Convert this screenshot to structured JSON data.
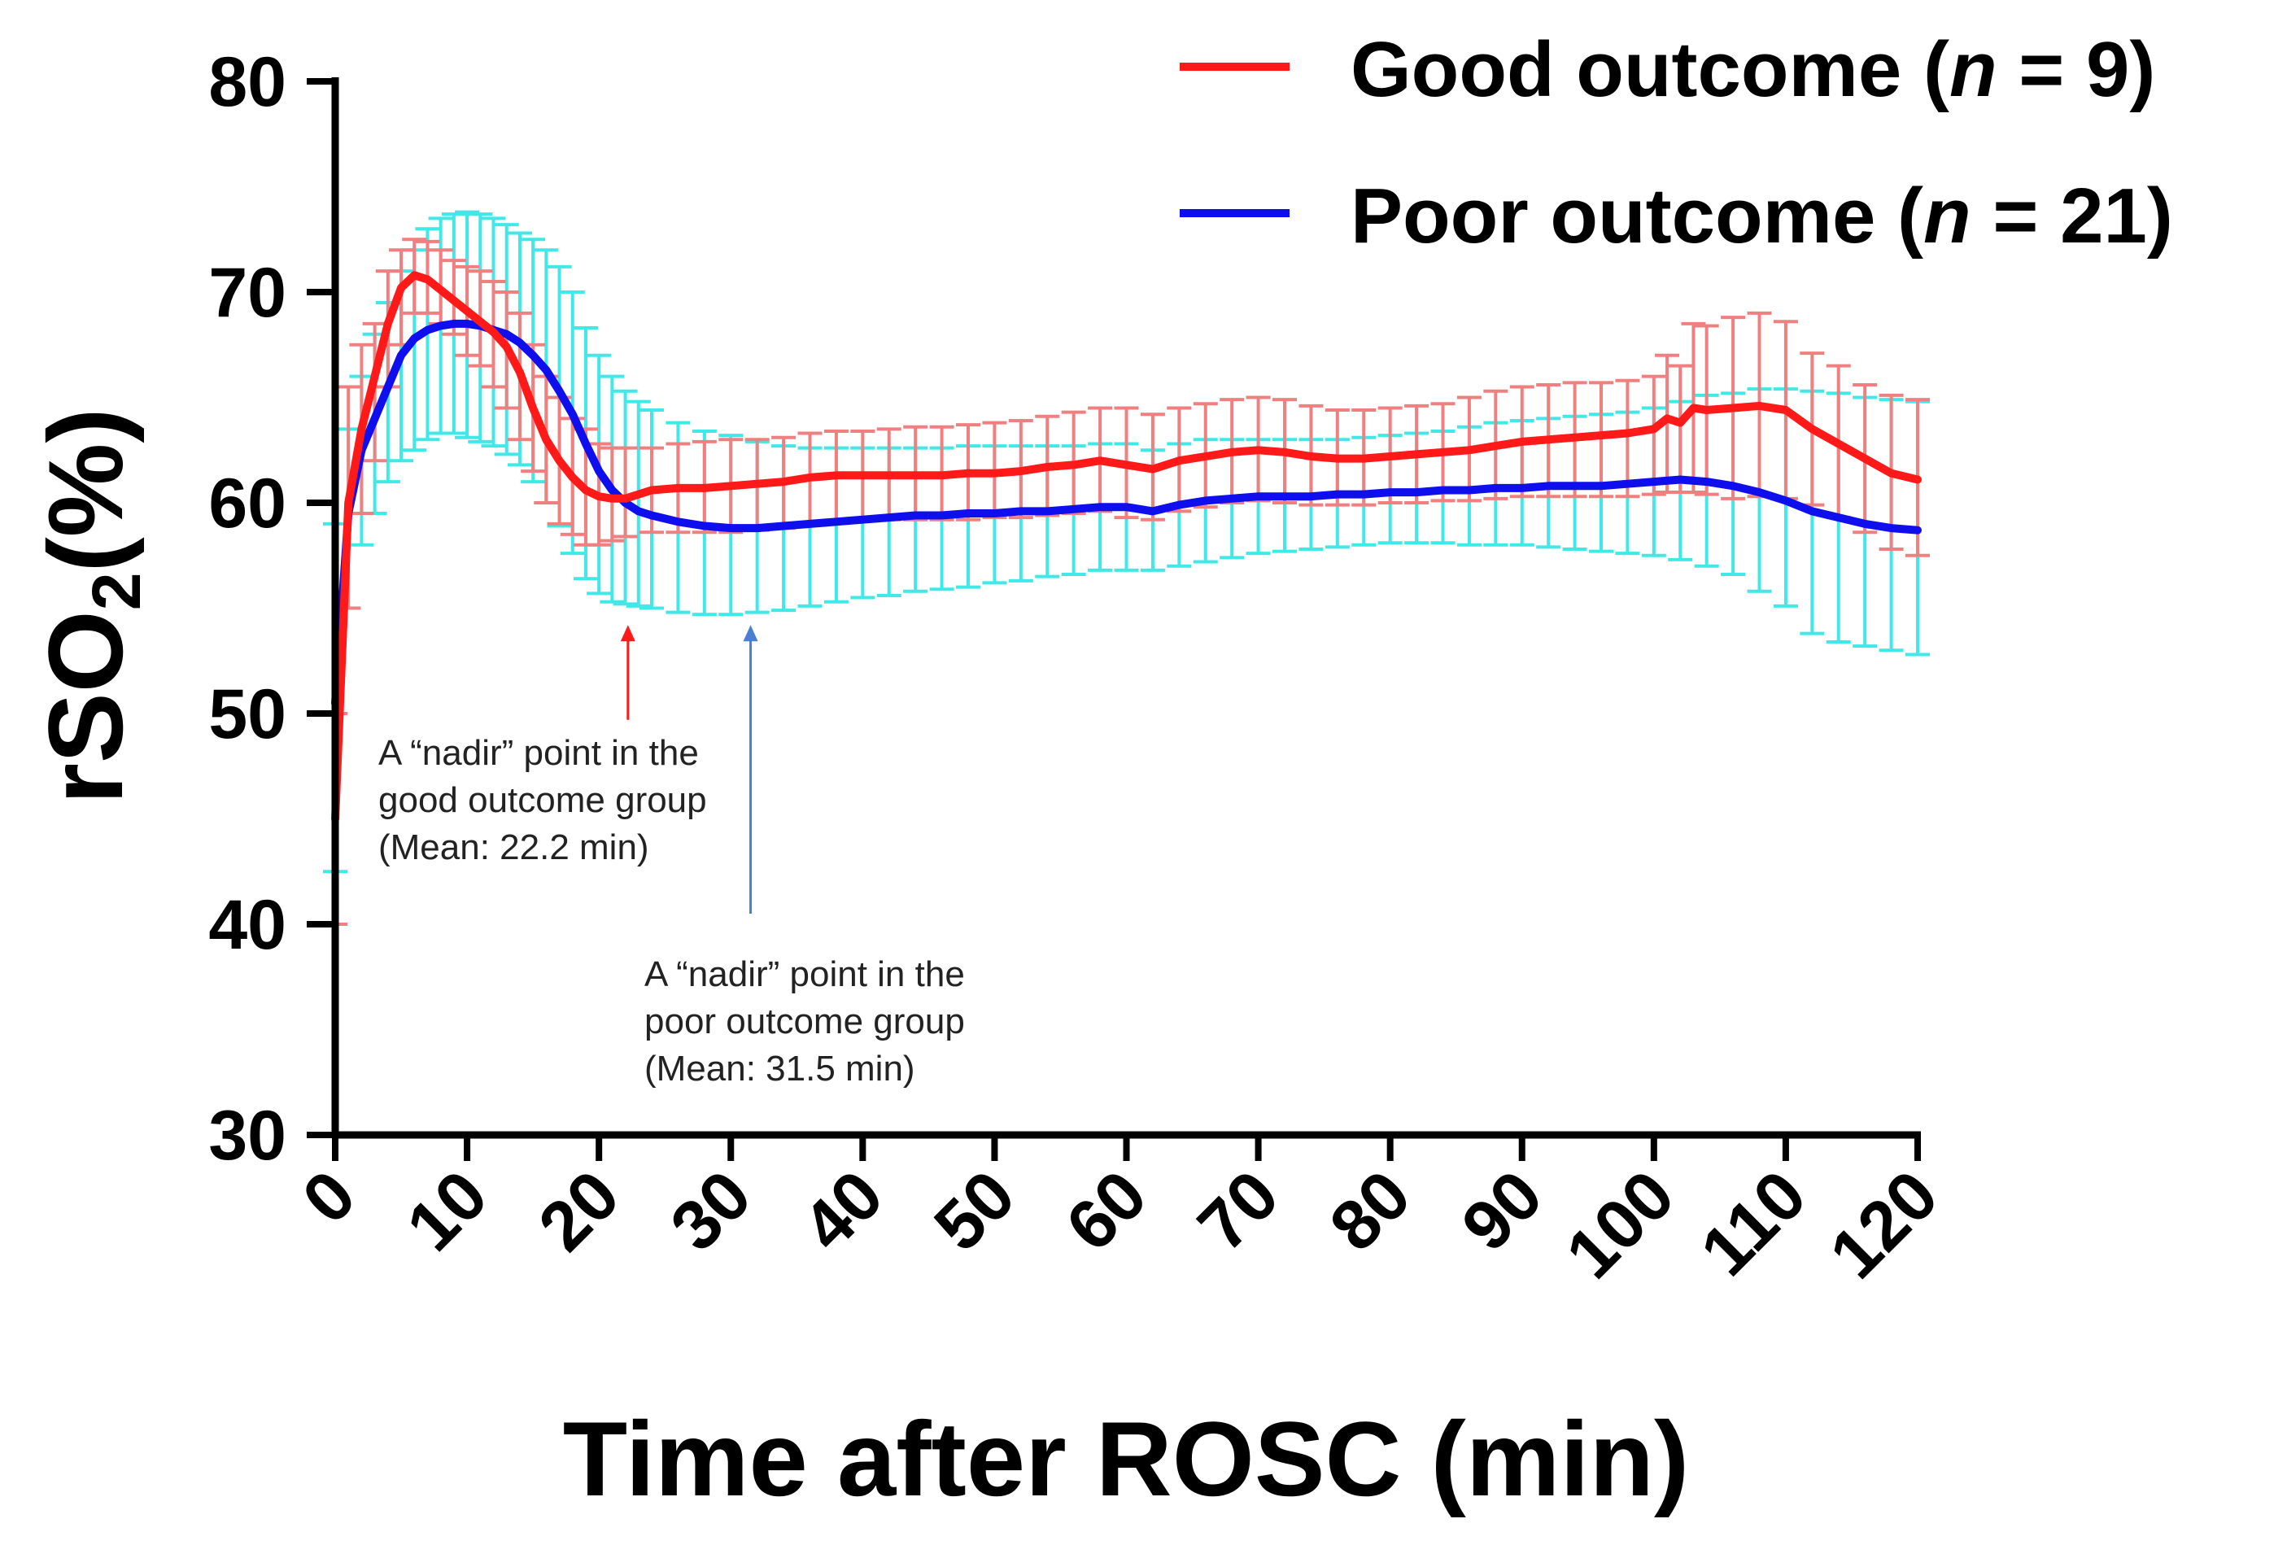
{
  "chart_data": {
    "type": "line",
    "xlabel": "Time after ROSC (min)",
    "ylabel": {
      "prefix": "rSO",
      "sub": "2",
      "suffix": "(%)"
    },
    "xlim": [
      0,
      120
    ],
    "ylim": [
      30,
      80
    ],
    "xticks": [
      0,
      10,
      20,
      30,
      40,
      50,
      60,
      70,
      80,
      90,
      100,
      110,
      120
    ],
    "yticks": [
      30,
      40,
      50,
      60,
      70,
      80
    ],
    "error_bars": "mean with error bars at each minute",
    "series": [
      {
        "name": "Good outcome",
        "legend": {
          "pre": "Good outcome (",
          "n": "n",
          "post": " = 9)"
        },
        "line_color": "#ff1a1a",
        "error_color": "#f08080",
        "points": [
          [
            0,
            45,
            40,
            50
          ],
          [
            1,
            60,
            55,
            65.5
          ],
          [
            2,
            63.5,
            59.5,
            67.5
          ],
          [
            3,
            66,
            62,
            68.5
          ],
          [
            4,
            68.5,
            65.5,
            71
          ],
          [
            5,
            70.2,
            67.5,
            72
          ],
          [
            6,
            70.8,
            69,
            72.5
          ],
          [
            7,
            70.6,
            69,
            72.4
          ],
          [
            8,
            70.1,
            68.5,
            72
          ],
          [
            9,
            69.6,
            68,
            71.5
          ],
          [
            10,
            69.1,
            67,
            71.2
          ],
          [
            11,
            68.6,
            66.5,
            71
          ],
          [
            12,
            68.1,
            65.5,
            70.5
          ],
          [
            13,
            67.4,
            64.5,
            70
          ],
          [
            14,
            66.2,
            63,
            69
          ],
          [
            15,
            64.5,
            61.5,
            67.5
          ],
          [
            16,
            63,
            60,
            66
          ],
          [
            17,
            62,
            59,
            65
          ],
          [
            18,
            61.2,
            58.5,
            64
          ],
          [
            19,
            60.6,
            58,
            63.5
          ],
          [
            20,
            60.3,
            58,
            62.8
          ],
          [
            21,
            60.2,
            58.2,
            62.6
          ],
          [
            22,
            60.2,
            58.4,
            62.6
          ],
          [
            24,
            60.6,
            58.6,
            62.6
          ],
          [
            26,
            60.7,
            58.6,
            62.8
          ],
          [
            28,
            60.7,
            58.6,
            62.9
          ],
          [
            30,
            60.8,
            58.6,
            63
          ],
          [
            32,
            60.9,
            58.7,
            63
          ],
          [
            34,
            61,
            58.8,
            63.1
          ],
          [
            36,
            61.2,
            59,
            63.3
          ],
          [
            38,
            61.3,
            59.1,
            63.4
          ],
          [
            40,
            61.3,
            59.2,
            63.4
          ],
          [
            42,
            61.3,
            59.2,
            63.5
          ],
          [
            44,
            61.3,
            59.2,
            63.6
          ],
          [
            46,
            61.3,
            59.2,
            63.6
          ],
          [
            48,
            61.4,
            59.2,
            63.7
          ],
          [
            50,
            61.4,
            59.3,
            63.8
          ],
          [
            52,
            61.5,
            59.3,
            63.9
          ],
          [
            54,
            61.7,
            59.4,
            64.1
          ],
          [
            56,
            61.8,
            59.5,
            64.3
          ],
          [
            58,
            62,
            59.6,
            64.5
          ],
          [
            60,
            61.8,
            59.3,
            64.5
          ],
          [
            62,
            61.6,
            59.2,
            64.2
          ],
          [
            64,
            62,
            59.6,
            64.5
          ],
          [
            66,
            62.2,
            59.8,
            64.7
          ],
          [
            68,
            62.4,
            60,
            64.9
          ],
          [
            70,
            62.5,
            60.1,
            65
          ],
          [
            72,
            62.4,
            60,
            64.9
          ],
          [
            74,
            62.2,
            59.9,
            64.6
          ],
          [
            76,
            62.1,
            59.9,
            64.4
          ],
          [
            78,
            62.1,
            59.9,
            64.4
          ],
          [
            80,
            62.2,
            60,
            64.5
          ],
          [
            82,
            62.3,
            60,
            64.6
          ],
          [
            84,
            62.4,
            60.1,
            64.7
          ],
          [
            86,
            62.5,
            60.1,
            65
          ],
          [
            88,
            62.7,
            60.2,
            65.3
          ],
          [
            90,
            62.9,
            60.3,
            65.5
          ],
          [
            92,
            63,
            60.3,
            65.6
          ],
          [
            94,
            63.1,
            60.3,
            65.7
          ],
          [
            96,
            63.2,
            60.3,
            65.7
          ],
          [
            98,
            63.3,
            60.3,
            65.8
          ],
          [
            100,
            63.5,
            60.4,
            66
          ],
          [
            101,
            64,
            60.5,
            67
          ],
          [
            102,
            63.8,
            60.5,
            66.5
          ],
          [
            103,
            64.5,
            60.5,
            68.5
          ],
          [
            104,
            64.4,
            60.4,
            68.4
          ],
          [
            106,
            64.5,
            60.2,
            68.8
          ],
          [
            108,
            64.6,
            60.3,
            69
          ],
          [
            110,
            64.4,
            60.2,
            68.6
          ],
          [
            112,
            63.5,
            59.9,
            67.1
          ],
          [
            114,
            62.8,
            59.3,
            66.5
          ],
          [
            116,
            62.1,
            58.6,
            65.6
          ],
          [
            118,
            61.4,
            57.8,
            65.1
          ],
          [
            120,
            61.1,
            57.5,
            64.9
          ]
        ]
      },
      {
        "name": "Poor outcome",
        "legend": {
          "pre": "Poor outcome (",
          "n": "n",
          "post": " = 21)"
        },
        "line_color": "#0f0fee",
        "error_color": "#40e8e8",
        "points": [
          [
            0,
            50.5,
            42.5,
            59
          ],
          [
            1,
            59.5,
            55,
            63.5
          ],
          [
            2,
            62.5,
            58,
            66
          ],
          [
            3,
            64,
            59.5,
            68
          ],
          [
            4,
            65.5,
            61,
            69.5
          ],
          [
            5,
            67,
            62,
            71
          ],
          [
            6,
            67.8,
            62.5,
            72
          ],
          [
            7,
            68.2,
            63,
            73
          ],
          [
            8,
            68.4,
            63.3,
            73.5
          ],
          [
            9,
            68.5,
            63.3,
            73.7
          ],
          [
            10,
            68.5,
            63.1,
            73.8
          ],
          [
            11,
            68.4,
            62.9,
            73.7
          ],
          [
            12,
            68.2,
            62.7,
            73.5
          ],
          [
            13,
            68,
            62.3,
            73.2
          ],
          [
            14,
            67.6,
            61.8,
            72.8
          ],
          [
            15,
            67,
            61,
            72.5
          ],
          [
            16,
            66.3,
            60,
            72
          ],
          [
            17,
            65.3,
            58.9,
            71.2
          ],
          [
            18,
            64.2,
            57.6,
            70
          ],
          [
            19,
            62.8,
            56.4,
            68.3
          ],
          [
            20,
            61.5,
            55.7,
            67
          ],
          [
            21,
            60.6,
            55.3,
            66
          ],
          [
            22,
            60,
            55.2,
            65.3
          ],
          [
            23,
            59.6,
            55.1,
            64.8
          ],
          [
            24,
            59.4,
            55,
            64.4
          ],
          [
            26,
            59.1,
            54.8,
            63.8
          ],
          [
            28,
            58.9,
            54.7,
            63.4
          ],
          [
            30,
            58.8,
            54.7,
            63.2
          ],
          [
            32,
            58.8,
            54.8,
            62.9
          ],
          [
            34,
            58.9,
            54.9,
            62.7
          ],
          [
            36,
            59,
            55.1,
            62.6
          ],
          [
            38,
            59.1,
            55.3,
            62.6
          ],
          [
            40,
            59.2,
            55.5,
            62.6
          ],
          [
            42,
            59.3,
            55.6,
            62.6
          ],
          [
            44,
            59.4,
            55.8,
            62.6
          ],
          [
            46,
            59.4,
            55.9,
            62.6
          ],
          [
            48,
            59.5,
            56,
            62.7
          ],
          [
            50,
            59.5,
            56.2,
            62.7
          ],
          [
            52,
            59.6,
            56.3,
            62.7
          ],
          [
            54,
            59.6,
            56.5,
            62.7
          ],
          [
            56,
            59.7,
            56.6,
            62.7
          ],
          [
            58,
            59.8,
            56.8,
            62.8
          ],
          [
            60,
            59.8,
            56.8,
            62.8
          ],
          [
            62,
            59.6,
            56.8,
            62.5
          ],
          [
            64,
            59.9,
            57,
            62.8
          ],
          [
            66,
            60.1,
            57.2,
            63
          ],
          [
            68,
            60.2,
            57.4,
            63
          ],
          [
            70,
            60.3,
            57.6,
            63
          ],
          [
            72,
            60.3,
            57.7,
            63
          ],
          [
            74,
            60.3,
            57.8,
            63
          ],
          [
            76,
            60.4,
            57.9,
            63
          ],
          [
            78,
            60.4,
            58,
            63.1
          ],
          [
            80,
            60.5,
            58.1,
            63.2
          ],
          [
            82,
            60.5,
            58.1,
            63.3
          ],
          [
            84,
            60.6,
            58.1,
            63.4
          ],
          [
            86,
            60.6,
            58,
            63.6
          ],
          [
            88,
            60.7,
            58,
            63.8
          ],
          [
            90,
            60.7,
            58,
            63.9
          ],
          [
            92,
            60.8,
            57.9,
            64
          ],
          [
            94,
            60.8,
            57.8,
            64.1
          ],
          [
            96,
            60.8,
            57.7,
            64.2
          ],
          [
            98,
            60.9,
            57.6,
            64.3
          ],
          [
            100,
            61,
            57.5,
            64.5
          ],
          [
            102,
            61.1,
            57.3,
            64.8
          ],
          [
            104,
            61,
            57,
            65.1
          ],
          [
            106,
            60.8,
            56.6,
            65.2
          ],
          [
            108,
            60.5,
            55.8,
            65.4
          ],
          [
            110,
            60.1,
            55.1,
            65.4
          ],
          [
            112,
            59.6,
            53.8,
            65.3
          ],
          [
            114,
            59.3,
            53.4,
            65.2
          ],
          [
            116,
            59,
            53.2,
            65
          ],
          [
            118,
            58.8,
            53,
            64.9
          ],
          [
            120,
            58.7,
            52.8,
            64.8
          ]
        ]
      }
    ],
    "annotations": [
      {
        "lines": [
          "A “nadir” point in the",
          "good outcome group",
          "(Mean: 22.2 min)"
        ],
        "arrow_x": 22.2,
        "arrow_y_from": 49.7,
        "arrow_y_to": 54.2,
        "arrow_color": "#ff1a1a"
      },
      {
        "lines": [
          "A “nadir” point in the",
          "poor outcome group",
          "(Mean: 31.5 min)"
        ],
        "arrow_x": 31.5,
        "arrow_y_from": 40.5,
        "arrow_y_to": 54.2,
        "arrow_color": "#4a7fd4"
      }
    ]
  }
}
